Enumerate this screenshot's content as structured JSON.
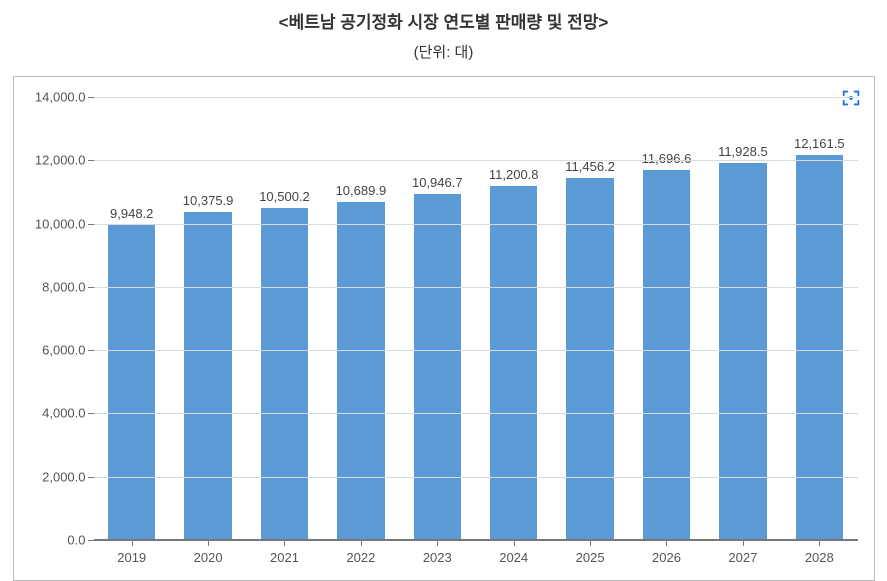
{
  "header": {
    "title": "<베트남 공기정화 시장 연도별 판매량 및 전망>",
    "subtitle": "(단위: 대)"
  },
  "chart": {
    "type": "bar",
    "categories": [
      "2019",
      "2020",
      "2021",
      "2022",
      "2023",
      "2024",
      "2025",
      "2026",
      "2027",
      "2028"
    ],
    "values": [
      9948.2,
      10375.9,
      10500.2,
      10689.9,
      10946.7,
      11200.8,
      11456.2,
      11696.6,
      11928.5,
      12161.5
    ],
    "value_labels": [
      "9,948.2",
      "10,375.9",
      "10,500.2",
      "10,689.9",
      "10,946.7",
      "11,200.8",
      "11,456.2",
      "11,696.6",
      "11,928.5",
      "12,161.5"
    ],
    "bar_color": "#5b9bd5",
    "background_color": "#ffffff",
    "border_color": "#bcbcbc",
    "grid_color": "#d9d9d9",
    "axis_color": "#777777",
    "text_color": "#555555",
    "ylim": [
      0,
      14000
    ],
    "ytick_step": 2000,
    "ytick_labels": [
      "0.0",
      "2,000.0",
      "4,000.0",
      "6,000.0",
      "8,000.0",
      "10,000.0",
      "12,000.0",
      "14,000.0"
    ],
    "bar_width_ratio": 0.62,
    "label_fontsize": 13,
    "title_fontsize": 17,
    "expand_icon_color": "#1a73e8"
  }
}
